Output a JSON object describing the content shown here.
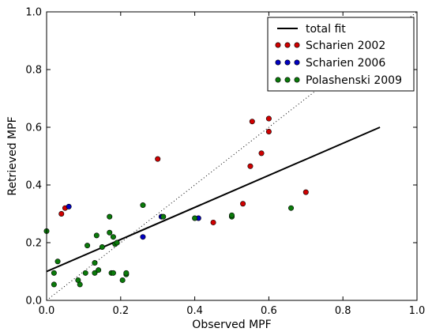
{
  "chart_data": {
    "type": "scatter",
    "xlabel": "Observed MPF",
    "ylabel": "Retrieved MPF",
    "xlim": [
      0.0,
      1.0
    ],
    "ylim": [
      0.0,
      1.0
    ],
    "x_ticks": [
      "0.0",
      "0.2",
      "0.4",
      "0.6",
      "0.8",
      "1.0"
    ],
    "y_ticks": [
      "0.0",
      "0.2",
      "0.4",
      "0.6",
      "0.8",
      "1.0"
    ],
    "grid": false,
    "legend_position": "top-right",
    "identity_line": {
      "x": [
        0.0,
        1.0
      ],
      "y": [
        0.0,
        1.0
      ],
      "color": "#000000",
      "style": "dotted"
    },
    "fit_line": {
      "name": "total fit",
      "x": [
        0.0,
        0.9
      ],
      "y": [
        0.1,
        0.6
      ],
      "color": "#000000"
    },
    "series": [
      {
        "name": "Scharien 2002",
        "color": "#d00000",
        "x": [
          0.04,
          0.05,
          0.3,
          0.45,
          0.53,
          0.55,
          0.555,
          0.58,
          0.6,
          0.6,
          0.7
        ],
        "y": [
          0.3,
          0.32,
          0.49,
          0.27,
          0.335,
          0.465,
          0.62,
          0.51,
          0.585,
          0.63,
          0.375
        ]
      },
      {
        "name": "Scharien 2006",
        "color": "#0000c0",
        "x": [
          0.06,
          0.26,
          0.31,
          0.41
        ],
        "y": [
          0.325,
          0.22,
          0.29,
          0.285
        ]
      },
      {
        "name": "Polashenski 2009",
        "color": "#0a7a0a",
        "x": [
          0.0,
          0.02,
          0.02,
          0.03,
          0.085,
          0.09,
          0.105,
          0.11,
          0.13,
          0.13,
          0.135,
          0.14,
          0.15,
          0.17,
          0.17,
          0.175,
          0.18,
          0.18,
          0.185,
          0.19,
          0.205,
          0.215,
          0.215,
          0.26,
          0.315,
          0.4,
          0.5,
          0.5,
          0.66
        ],
        "y": [
          0.24,
          0.095,
          0.055,
          0.135,
          0.07,
          0.055,
          0.095,
          0.19,
          0.13,
          0.095,
          0.225,
          0.105,
          0.185,
          0.29,
          0.235,
          0.095,
          0.22,
          0.095,
          0.195,
          0.2,
          0.07,
          0.09,
          0.095,
          0.33,
          0.29,
          0.285,
          0.29,
          0.295,
          0.32
        ]
      }
    ]
  }
}
